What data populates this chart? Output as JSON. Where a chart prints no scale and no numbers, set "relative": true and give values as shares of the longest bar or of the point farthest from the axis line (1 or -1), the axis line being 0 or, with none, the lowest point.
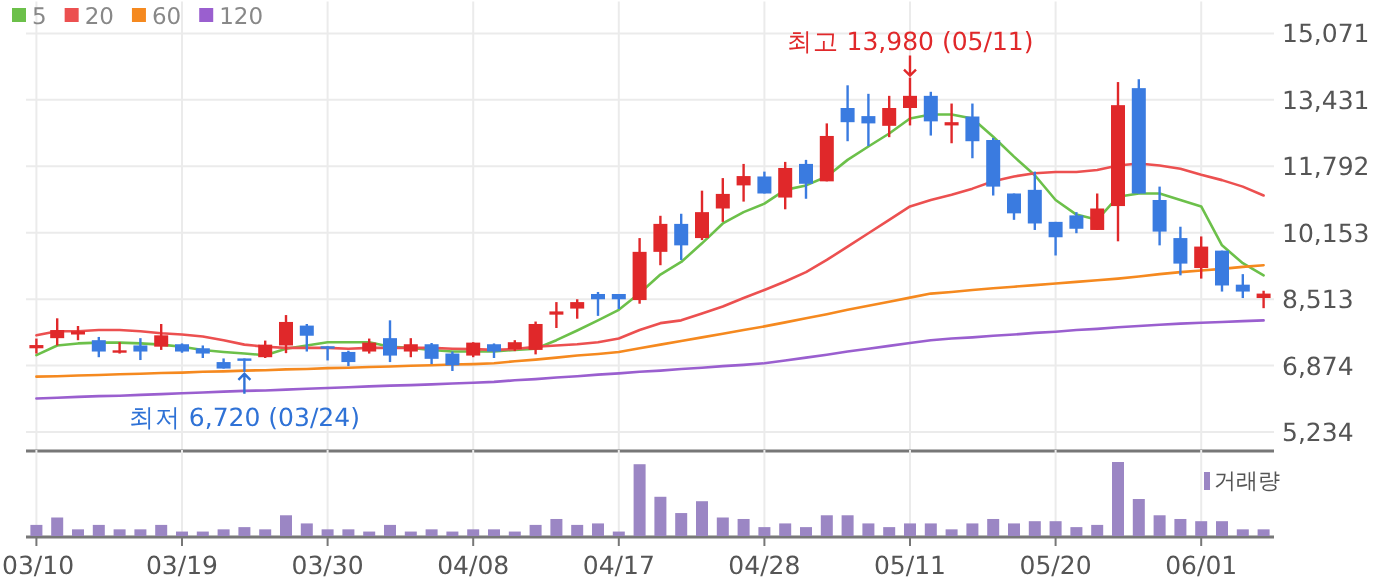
{
  "chart_data": [
    {
      "type": "candlestick",
      "categories": [
        "03/10",
        null,
        null,
        null,
        null,
        null,
        null,
        "03/19",
        null,
        null,
        null,
        null,
        null,
        null,
        "03/30",
        null,
        null,
        null,
        null,
        null,
        null,
        "04/08",
        null,
        null,
        null,
        null,
        null,
        null,
        "04/17",
        null,
        null,
        null,
        null,
        null,
        null,
        "04/28",
        null,
        null,
        null,
        null,
        null,
        null,
        "05/11",
        null,
        null,
        null,
        null,
        null,
        null,
        "05/20",
        null,
        null,
        null,
        null,
        null,
        null,
        "06/01",
        null,
        null,
        null
      ],
      "ohlc": [
        [
          7300,
          7540,
          7170,
          7380
        ],
        [
          7550,
          8040,
          7370,
          7750
        ],
        [
          7640,
          7850,
          7500,
          7720
        ],
        [
          7500,
          7580,
          7080,
          7220
        ],
        [
          7230,
          7450,
          7170,
          7250
        ],
        [
          7370,
          7550,
          7010,
          7220
        ],
        [
          7340,
          7900,
          7260,
          7620
        ],
        [
          7400,
          7420,
          7190,
          7220
        ],
        [
          7300,
          7370,
          7060,
          7170
        ],
        [
          6960,
          7050,
          6800,
          6800
        ],
        [
          7050,
          7050,
          6720,
          6990
        ],
        [
          7080,
          7490,
          7060,
          7390
        ],
        [
          7370,
          8120,
          7180,
          7950
        ],
        [
          7860,
          7900,
          7220,
          7610
        ],
        [
          7350,
          7350,
          7000,
          7300
        ],
        [
          7210,
          7240,
          6860,
          6960
        ],
        [
          7220,
          7540,
          7170,
          7440
        ],
        [
          7550,
          7990,
          6960,
          7120
        ],
        [
          7220,
          7550,
          7080,
          7400
        ],
        [
          7400,
          7430,
          6910,
          7040
        ],
        [
          7170,
          7220,
          6740,
          6880
        ],
        [
          7120,
          7450,
          7080,
          7440
        ],
        [
          7400,
          7420,
          7060,
          7220
        ],
        [
          7280,
          7500,
          7230,
          7450
        ],
        [
          7260,
          7960,
          7150,
          7900
        ],
        [
          8130,
          8440,
          7800,
          8210
        ],
        [
          8280,
          8510,
          8030,
          8440
        ],
        [
          8640,
          8690,
          8100,
          8510
        ],
        [
          8640,
          8640,
          8270,
          8510
        ],
        [
          8490,
          10020,
          8400,
          9680
        ],
        [
          9680,
          10570,
          9350,
          10370
        ],
        [
          10370,
          10620,
          9480,
          9840
        ],
        [
          10020,
          11190,
          9970,
          10660
        ],
        [
          10750,
          11500,
          10420,
          11110
        ],
        [
          11320,
          11850,
          10920,
          11550
        ],
        [
          11540,
          11660,
          11120,
          11120
        ],
        [
          11020,
          11900,
          10730,
          11750
        ],
        [
          11850,
          11950,
          10990,
          11360
        ],
        [
          11420,
          12850,
          11420,
          12540
        ],
        [
          13230,
          13790,
          12410,
          12880
        ],
        [
          13030,
          13580,
          12290,
          12850
        ],
        [
          12790,
          13530,
          12510,
          13230
        ],
        [
          13230,
          13980,
          12800,
          13530
        ],
        [
          13530,
          13630,
          12550,
          12900
        ],
        [
          12800,
          13340,
          12360,
          12880
        ],
        [
          13020,
          13340,
          11990,
          12410
        ],
        [
          12440,
          12490,
          11070,
          11290
        ],
        [
          11120,
          11120,
          10470,
          10630
        ],
        [
          11210,
          11660,
          10220,
          10380
        ],
        [
          10420,
          10420,
          9590,
          10040
        ],
        [
          10580,
          10660,
          10140,
          10250
        ],
        [
          10220,
          11120,
          10220,
          10750
        ],
        [
          10810,
          13870,
          9940,
          13300
        ],
        [
          13720,
          13940,
          11120,
          11120
        ],
        [
          10960,
          11290,
          9840,
          10180
        ],
        [
          10020,
          10300,
          9100,
          9390
        ],
        [
          9280,
          10060,
          9020,
          9810
        ],
        [
          9710,
          9710,
          8700,
          8850
        ],
        [
          8870,
          9130,
          8540,
          8700
        ],
        [
          8540,
          8720,
          8290,
          8650
        ]
      ],
      "colors": [
        "#e0282a",
        "#e0282a",
        "#e0282a",
        "#3a7be0",
        "#e0282a",
        "#3a7be0",
        "#e0282a",
        "#3a7be0",
        "#3a7be0",
        "#3a7be0",
        "#3a7be0",
        "#e0282a",
        "#e0282a",
        "#3a7be0",
        "#3a7be0",
        "#3a7be0",
        "#e0282a",
        "#3a7be0",
        "#e0282a",
        "#3a7be0",
        "#3a7be0",
        "#e0282a",
        "#3a7be0",
        "#e0282a",
        "#e0282a",
        "#e0282a",
        "#e0282a",
        "#3a7be0",
        "#3a7be0",
        "#e0282a",
        "#e0282a",
        "#3a7be0",
        "#e0282a",
        "#e0282a",
        "#e0282a",
        "#3a7be0",
        "#e0282a",
        "#3a7be0",
        "#e0282a",
        "#3a7be0",
        "#3a7be0",
        "#e0282a",
        "#e0282a",
        "#3a7be0",
        "#e0282a",
        "#3a7be0",
        "#3a7be0",
        "#3a7be0",
        "#3a7be0",
        "#3a7be0",
        "#3a7be0",
        "#e0282a",
        "#e0282a",
        "#3a7be0",
        "#3a7be0",
        "#3a7be0",
        "#e0282a",
        "#3a7be0",
        "#3a7be0",
        "#e0282a"
      ],
      "series": [
        {
          "type": "line",
          "name": "5",
          "color": "#6cc04a",
          "values": [
            7130,
            7370,
            7420,
            7440,
            7440,
            7420,
            7390,
            7340,
            7260,
            7210,
            7170,
            7130,
            7290,
            7370,
            7450,
            7450,
            7450,
            7340,
            7310,
            7260,
            7220,
            7220,
            7220,
            7260,
            7290,
            7500,
            7740,
            7990,
            8250,
            8660,
            9120,
            9430,
            9890,
            10380,
            10660,
            10870,
            11210,
            11320,
            11540,
            11950,
            12280,
            12600,
            12970,
            13070,
            13070,
            12970,
            12520,
            12030,
            11570,
            10960,
            10600,
            10470,
            11040,
            11120,
            11120,
            10960,
            10800,
            9840,
            9400,
            9100
          ]
        },
        {
          "type": "line",
          "name": "20",
          "color": "#ec5050",
          "values": [
            7620,
            7720,
            7720,
            7750,
            7750,
            7720,
            7670,
            7640,
            7590,
            7500,
            7390,
            7340,
            7310,
            7310,
            7310,
            7290,
            7310,
            7310,
            7310,
            7310,
            7290,
            7280,
            7260,
            7280,
            7340,
            7370,
            7400,
            7450,
            7540,
            7750,
            7920,
            7990,
            8160,
            8330,
            8540,
            8740,
            8950,
            9180,
            9480,
            9810,
            10140,
            10470,
            10800,
            10960,
            11090,
            11240,
            11420,
            11540,
            11620,
            11650,
            11650,
            11700,
            11810,
            11860,
            11810,
            11730,
            11580,
            11450,
            11290,
            11070
          ]
        },
        {
          "type": "line",
          "name": "60",
          "color": "#f5891f",
          "values": [
            6600,
            6610,
            6630,
            6640,
            6660,
            6670,
            6690,
            6700,
            6720,
            6730,
            6750,
            6760,
            6780,
            6790,
            6810,
            6820,
            6840,
            6850,
            6870,
            6880,
            6900,
            6910,
            6930,
            6980,
            7020,
            7070,
            7120,
            7160,
            7210,
            7300,
            7390,
            7480,
            7570,
            7660,
            7750,
            7840,
            7940,
            8040,
            8140,
            8250,
            8350,
            8450,
            8550,
            8650,
            8690,
            8740,
            8780,
            8820,
            8860,
            8900,
            8940,
            8980,
            9020,
            9070,
            9130,
            9180,
            9220,
            9260,
            9310,
            9350
          ]
        },
        {
          "type": "line",
          "name": "120",
          "color": "#9a5fcf",
          "values": [
            6060,
            6080,
            6100,
            6120,
            6130,
            6150,
            6170,
            6190,
            6210,
            6230,
            6250,
            6260,
            6280,
            6300,
            6320,
            6340,
            6360,
            6380,
            6390,
            6410,
            6430,
            6450,
            6470,
            6510,
            6540,
            6580,
            6610,
            6650,
            6680,
            6720,
            6750,
            6790,
            6820,
            6860,
            6890,
            6930,
            7000,
            7070,
            7140,
            7220,
            7290,
            7360,
            7430,
            7500,
            7540,
            7570,
            7610,
            7640,
            7680,
            7710,
            7750,
            7780,
            7820,
            7850,
            7880,
            7910,
            7930,
            7950,
            7970,
            7990
          ]
        }
      ],
      "ylim": [
        4790,
        15071
      ],
      "yticks": [
        {
          "value": 5234,
          "label": "5,234"
        },
        {
          "value": 6874,
          "label": "6,874"
        },
        {
          "value": 8513,
          "label": "8,513"
        },
        {
          "value": 10153,
          "label": "10,153"
        },
        {
          "value": 11792,
          "label": "11,792"
        },
        {
          "value": 13431,
          "label": "13,431"
        },
        {
          "value": 15071,
          "label": "15,071"
        }
      ],
      "annotations": [
        {
          "text": "최고 13,980 (05/11)",
          "x": "05/11",
          "y": 13980
        },
        {
          "text": "최저 6,720 (03/24)",
          "y": 6720
        }
      ],
      "tick_labels": "y",
      "grid": true,
      "legend": "top left"
    },
    {
      "type": "bar",
      "relative": true,
      "categories": [
        "03/10",
        null,
        null,
        null,
        null,
        null,
        null,
        "03/19",
        null,
        null,
        null,
        null,
        null,
        null,
        "03/30",
        null,
        null,
        null,
        null,
        null,
        null,
        "04/08",
        null,
        null,
        null,
        null,
        null,
        null,
        "04/17",
        null,
        null,
        null,
        null,
        null,
        null,
        "04/28",
        null,
        null,
        null,
        null,
        null,
        null,
        "05/11",
        null,
        null,
        null,
        null,
        null,
        null,
        "05/20",
        null,
        null,
        null,
        null,
        null,
        null,
        "06/01",
        null,
        null,
        null
      ],
      "series": [
        {
          "name": "거래량",
          "color": "#9b86c4",
          "values": [
            0.15,
            0.25,
            0.09,
            0.15,
            0.09,
            0.09,
            0.15,
            0.06,
            0.06,
            0.09,
            0.12,
            0.09,
            0.28,
            0.17,
            0.09,
            0.09,
            0.06,
            0.15,
            0.06,
            0.09,
            0.06,
            0.09,
            0.09,
            0.06,
            0.15,
            0.23,
            0.15,
            0.17,
            0.06,
            0.97,
            0.53,
            0.31,
            0.47,
            0.25,
            0.23,
            0.12,
            0.17,
            0.12,
            0.28,
            0.28,
            0.17,
            0.12,
            0.17,
            0.17,
            0.09,
            0.17,
            0.23,
            0.17,
            0.2,
            0.2,
            0.12,
            0.15,
            1,
            0.5,
            0.28,
            0.23,
            0.2,
            0.2,
            0.09,
            0.09
          ]
        }
      ],
      "tick_labels": "x",
      "grid": "x",
      "legend": "top right"
    }
  ]
}
